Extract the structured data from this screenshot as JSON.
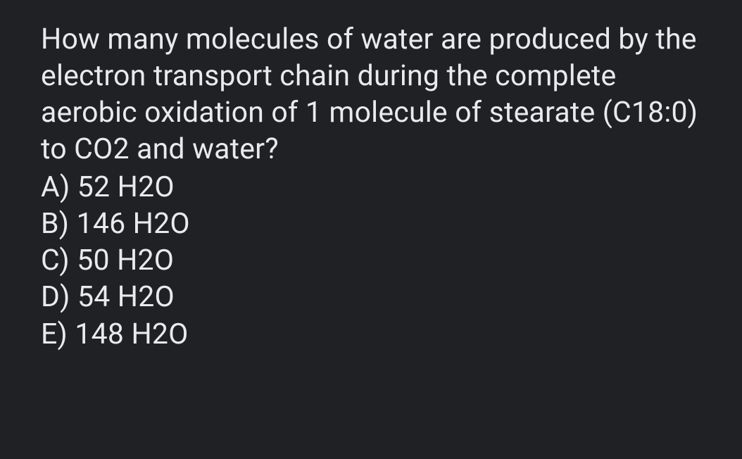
{
  "question": {
    "text": "How many molecules of water are produced by the electron transport chain during the complete aerobic oxidation of 1 molecule of stearate (C18:0) to CO2 and water?",
    "options": [
      {
        "letter": "A",
        "label": "A) 52 H2O"
      },
      {
        "letter": "B",
        "label": "B) 146 H2O"
      },
      {
        "letter": "C",
        "label": "C) 50 H2O"
      },
      {
        "letter": "D",
        "label": "D) 54 H2O"
      },
      {
        "letter": "E",
        "label": "E) 148 H2O"
      }
    ]
  },
  "style": {
    "background_color": "#202124",
    "text_color": "#e8eaed",
    "font_size_pt": 31,
    "font_family": "Roboto, Helvetica Neue, Arial, sans-serif",
    "font_weight": 400,
    "line_height": 1.27
  }
}
